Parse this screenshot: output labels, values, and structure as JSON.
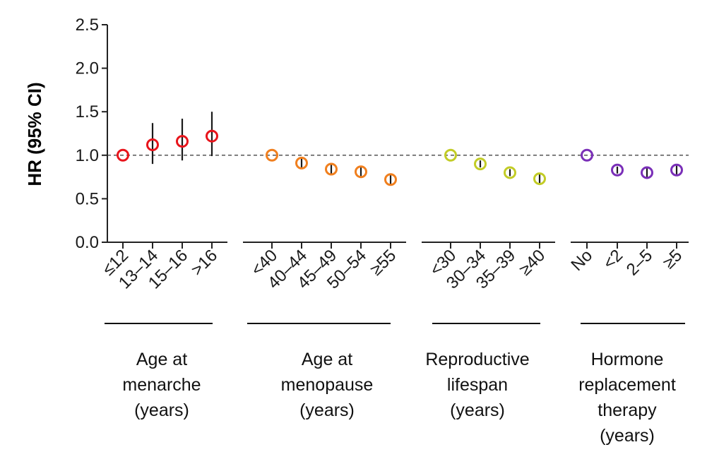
{
  "chart_data": {
    "type": "scatter",
    "ylabel": "HR (95% CI)",
    "ylim": [
      0,
      2.5
    ],
    "yticks": [
      "0.0",
      "0.5",
      "1.0",
      "1.5",
      "2.0",
      "2.5"
    ],
    "reference_line": 1.0,
    "groups": [
      {
        "label": [
          "Age at",
          "menarche",
          "(years)"
        ],
        "color": "#e8141b",
        "categories": [
          "≤12",
          "13–14",
          "15–16",
          ">16"
        ],
        "hr": [
          1.0,
          1.12,
          1.16,
          1.22
        ],
        "ci_low": [
          1.0,
          0.9,
          0.94,
          0.99
        ],
        "ci_high": [
          1.0,
          1.37,
          1.42,
          1.5
        ]
      },
      {
        "label": [
          "Age at",
          "menopause",
          "(years)"
        ],
        "color": "#f07f1e",
        "categories": [
          "<40",
          "40–44",
          "45–49",
          "50–54",
          "≥55"
        ],
        "hr": [
          1.0,
          0.91,
          0.84,
          0.81,
          0.72
        ],
        "ci_low": [
          1.0,
          0.85,
          0.79,
          0.76,
          0.67
        ],
        "ci_high": [
          1.0,
          0.97,
          0.89,
          0.86,
          0.77
        ]
      },
      {
        "label": [
          "Reproductive",
          "lifespan",
          "(years)"
        ],
        "color": "#c2cc26",
        "categories": [
          "<30",
          "30–34",
          "35–39",
          "≥40"
        ],
        "hr": [
          1.0,
          0.9,
          0.8,
          0.73
        ],
        "ci_low": [
          1.0,
          0.86,
          0.76,
          0.68
        ],
        "ci_high": [
          1.0,
          0.94,
          0.84,
          0.78
        ]
      },
      {
        "label": [
          "Hormone",
          "replacement",
          "therapy",
          "(years)"
        ],
        "color": "#7a2fb8",
        "categories": [
          "No",
          "<2",
          "2–5",
          "≥5"
        ],
        "hr": [
          1.0,
          0.83,
          0.8,
          0.83
        ],
        "ci_low": [
          1.0,
          0.79,
          0.74,
          0.78
        ],
        "ci_high": [
          1.0,
          0.87,
          0.86,
          0.88
        ]
      }
    ]
  }
}
